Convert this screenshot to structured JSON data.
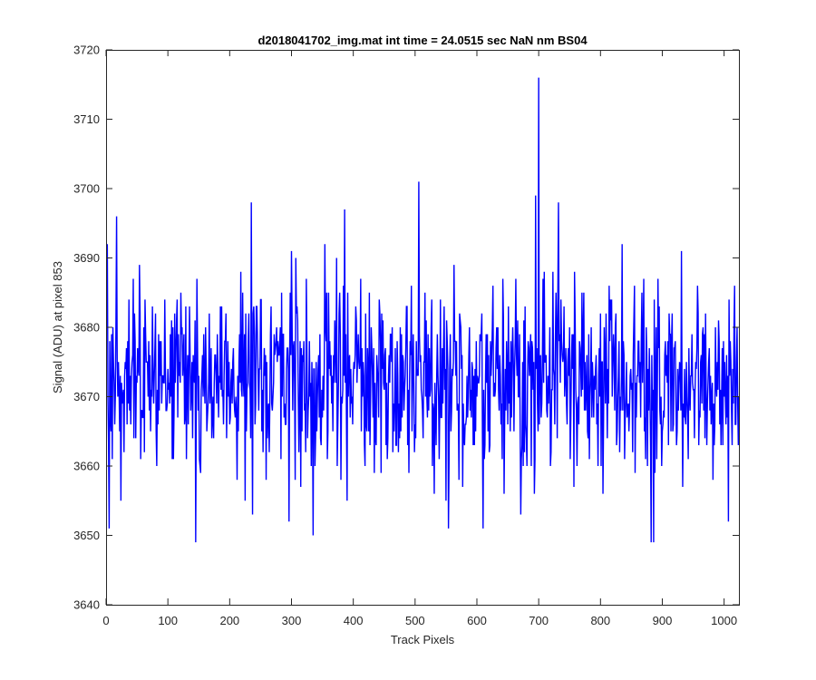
{
  "chart_data": {
    "type": "line",
    "title": "d2018041702_img.mat int time = 24.0515 sec  NaN nm BS04",
    "xlabel": "Track Pixels",
    "ylabel": "Signal (ADU) at pixel 853",
    "xlim": [
      0,
      1024
    ],
    "ylim": [
      3640,
      3720
    ],
    "xticks": [
      0,
      100,
      200,
      300,
      400,
      500,
      600,
      700,
      800,
      900,
      1000
    ],
    "yticks": [
      3640,
      3650,
      3660,
      3670,
      3680,
      3690,
      3700,
      3710,
      3720
    ],
    "xtick_labels": [
      "0",
      "100",
      "200",
      "300",
      "400",
      "500",
      "600",
      "700",
      "800",
      "900",
      "1000"
    ],
    "ytick_labels": [
      "3640",
      "3650",
      "3660",
      "3670",
      "3680",
      "3690",
      "3700",
      "3710",
      "3720"
    ],
    "grid": false,
    "legend": "none",
    "series": [
      {
        "color": "#0000ff",
        "x_start": 1,
        "x_step": 1,
        "n_points": 1024,
        "mean": 3672,
        "std": 7,
        "notable_points": [
          {
            "x": 2,
            "y": 3692
          },
          {
            "x": 5,
            "y": 3651
          },
          {
            "x": 17,
            "y": 3696
          },
          {
            "x": 24,
            "y": 3655
          },
          {
            "x": 145,
            "y": 3649
          },
          {
            "x": 235,
            "y": 3698
          },
          {
            "x": 237,
            "y": 3653
          },
          {
            "x": 335,
            "y": 3650
          },
          {
            "x": 386,
            "y": 3697
          },
          {
            "x": 506,
            "y": 3701
          },
          {
            "x": 554,
            "y": 3651
          },
          {
            "x": 610,
            "y": 3651
          },
          {
            "x": 695,
            "y": 3699
          },
          {
            "x": 700,
            "y": 3716
          },
          {
            "x": 732,
            "y": 3698
          },
          {
            "x": 882,
            "y": 3649
          },
          {
            "x": 886,
            "y": 3649
          },
          {
            "x": 1007,
            "y": 3652
          }
        ]
      }
    ]
  }
}
